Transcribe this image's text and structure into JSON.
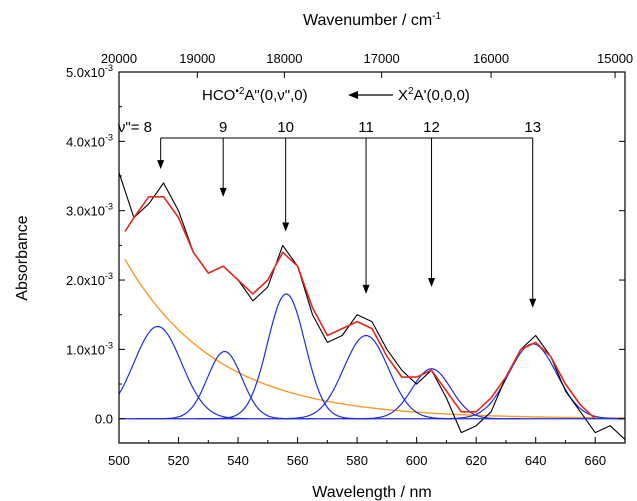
{
  "chart_data": {
    "type": "line",
    "xlabel": "Wavelength / nm",
    "x2label": "Wavenumber / cm",
    "x2label_sup": "-1",
    "ylabel": "Absorbance",
    "xlim": [
      500,
      670
    ],
    "ylim": [
      -0.00035,
      0.005
    ],
    "x_ticks": [
      500,
      520,
      540,
      560,
      580,
      600,
      620,
      640,
      660
    ],
    "x2_ticks": [
      20000,
      19000,
      18000,
      17000,
      16000,
      15000
    ],
    "y_ticks": [
      {
        "value": 0.0,
        "mant": "0.0",
        "sup": ""
      },
      {
        "value": 0.001,
        "mant": "1.0x10",
        "sup": "-3"
      },
      {
        "value": 0.002,
        "mant": "2.0x10",
        "sup": "-3"
      },
      {
        "value": 0.003,
        "mant": "3.0x10",
        "sup": "-3"
      },
      {
        "value": 0.004,
        "mant": "4.0x10",
        "sup": "-3"
      },
      {
        "value": 0.005,
        "mant": "5.0x10",
        "sup": "-3"
      }
    ],
    "annotation": {
      "upper_state": "HCO",
      "upper_radical": "•",
      "upper_mult": "2",
      "upper_term": "A\"(0,ν\",0)",
      "lower_state": "X",
      "lower_mult": "2",
      "lower_term": "A'(0,0,0)",
      "progression_label": "ν\"= "
    },
    "progression": [
      {
        "label": "8",
        "x": 514,
        "y": 0.0036
      },
      {
        "label": "9",
        "x": 535,
        "y": 0.0032
      },
      {
        "label": "10",
        "x": 556,
        "y": 0.0027
      },
      {
        "label": "11",
        "x": 583,
        "y": 0.0018
      },
      {
        "label": "12",
        "x": 605,
        "y": 0.0019
      },
      {
        "label": "13",
        "x": 639,
        "y": 0.0016
      }
    ],
    "colors": {
      "data": "#000000",
      "fit": "#e0281c",
      "components": "#1f2fd6",
      "background": "#f59b2a"
    },
    "background": {
      "A": 0.0023,
      "x0": 502,
      "k": 0.0325
    },
    "components": [
      {
        "center": 513,
        "amp": 0.00133,
        "sigma": 8.0
      },
      {
        "center": 535.5,
        "amp": 0.00097,
        "sigma": 5.8
      },
      {
        "center": 556.2,
        "amp": 0.0018,
        "sigma": 6.3
      },
      {
        "center": 583,
        "amp": 0.0012,
        "sigma": 7.5
      },
      {
        "center": 605,
        "amp": 0.00072,
        "sigma": 6.5
      },
      {
        "center": 639,
        "amp": 0.00108,
        "sigma": 8.0
      }
    ],
    "series": [
      {
        "name": "",
        "role": "data",
        "x": [
          500,
          505,
          510,
          515,
          520,
          525,
          530,
          535,
          540,
          545,
          550,
          555,
          560,
          565,
          570,
          575,
          580,
          585,
          590,
          595,
          600,
          605,
          610,
          615,
          620,
          625,
          630,
          635,
          640,
          645,
          650,
          655,
          660,
          665,
          670
        ],
        "y": [
          0.00355,
          0.0029,
          0.0031,
          0.0034,
          0.003,
          0.0024,
          0.0021,
          0.0022,
          0.002,
          0.0017,
          0.0019,
          0.0025,
          0.0022,
          0.0015,
          0.0011,
          0.0012,
          0.0015,
          0.0014,
          0.001,
          0.0007,
          0.0005,
          0.0007,
          0.0003,
          -0.0002,
          -0.0001,
          0.0001,
          0.0006,
          0.001,
          0.0012,
          0.0009,
          0.0004,
          0.0001,
          -0.0002,
          -0.0001,
          -0.0003
        ]
      },
      {
        "name": "",
        "role": "fit",
        "x": [
          502,
          505,
          510,
          515,
          520,
          525,
          530,
          535,
          540,
          545,
          550,
          555,
          560,
          565,
          570,
          575,
          580,
          585,
          590,
          595,
          600,
          605,
          610,
          615,
          620,
          625,
          630,
          635,
          640,
          645,
          650,
          655,
          660
        ],
        "y": [
          0.0027,
          0.0029,
          0.0032,
          0.0032,
          0.0029,
          0.0024,
          0.0021,
          0.0022,
          0.002,
          0.0018,
          0.002,
          0.0024,
          0.0022,
          0.0016,
          0.0012,
          0.0013,
          0.0014,
          0.0013,
          0.0009,
          0.0006,
          0.0006,
          0.0007,
          0.0004,
          0.0001,
          0.0001,
          0.0003,
          0.0006,
          0.001,
          0.0011,
          0.0009,
          0.0005,
          0.0002,
          0.0
        ]
      }
    ]
  }
}
